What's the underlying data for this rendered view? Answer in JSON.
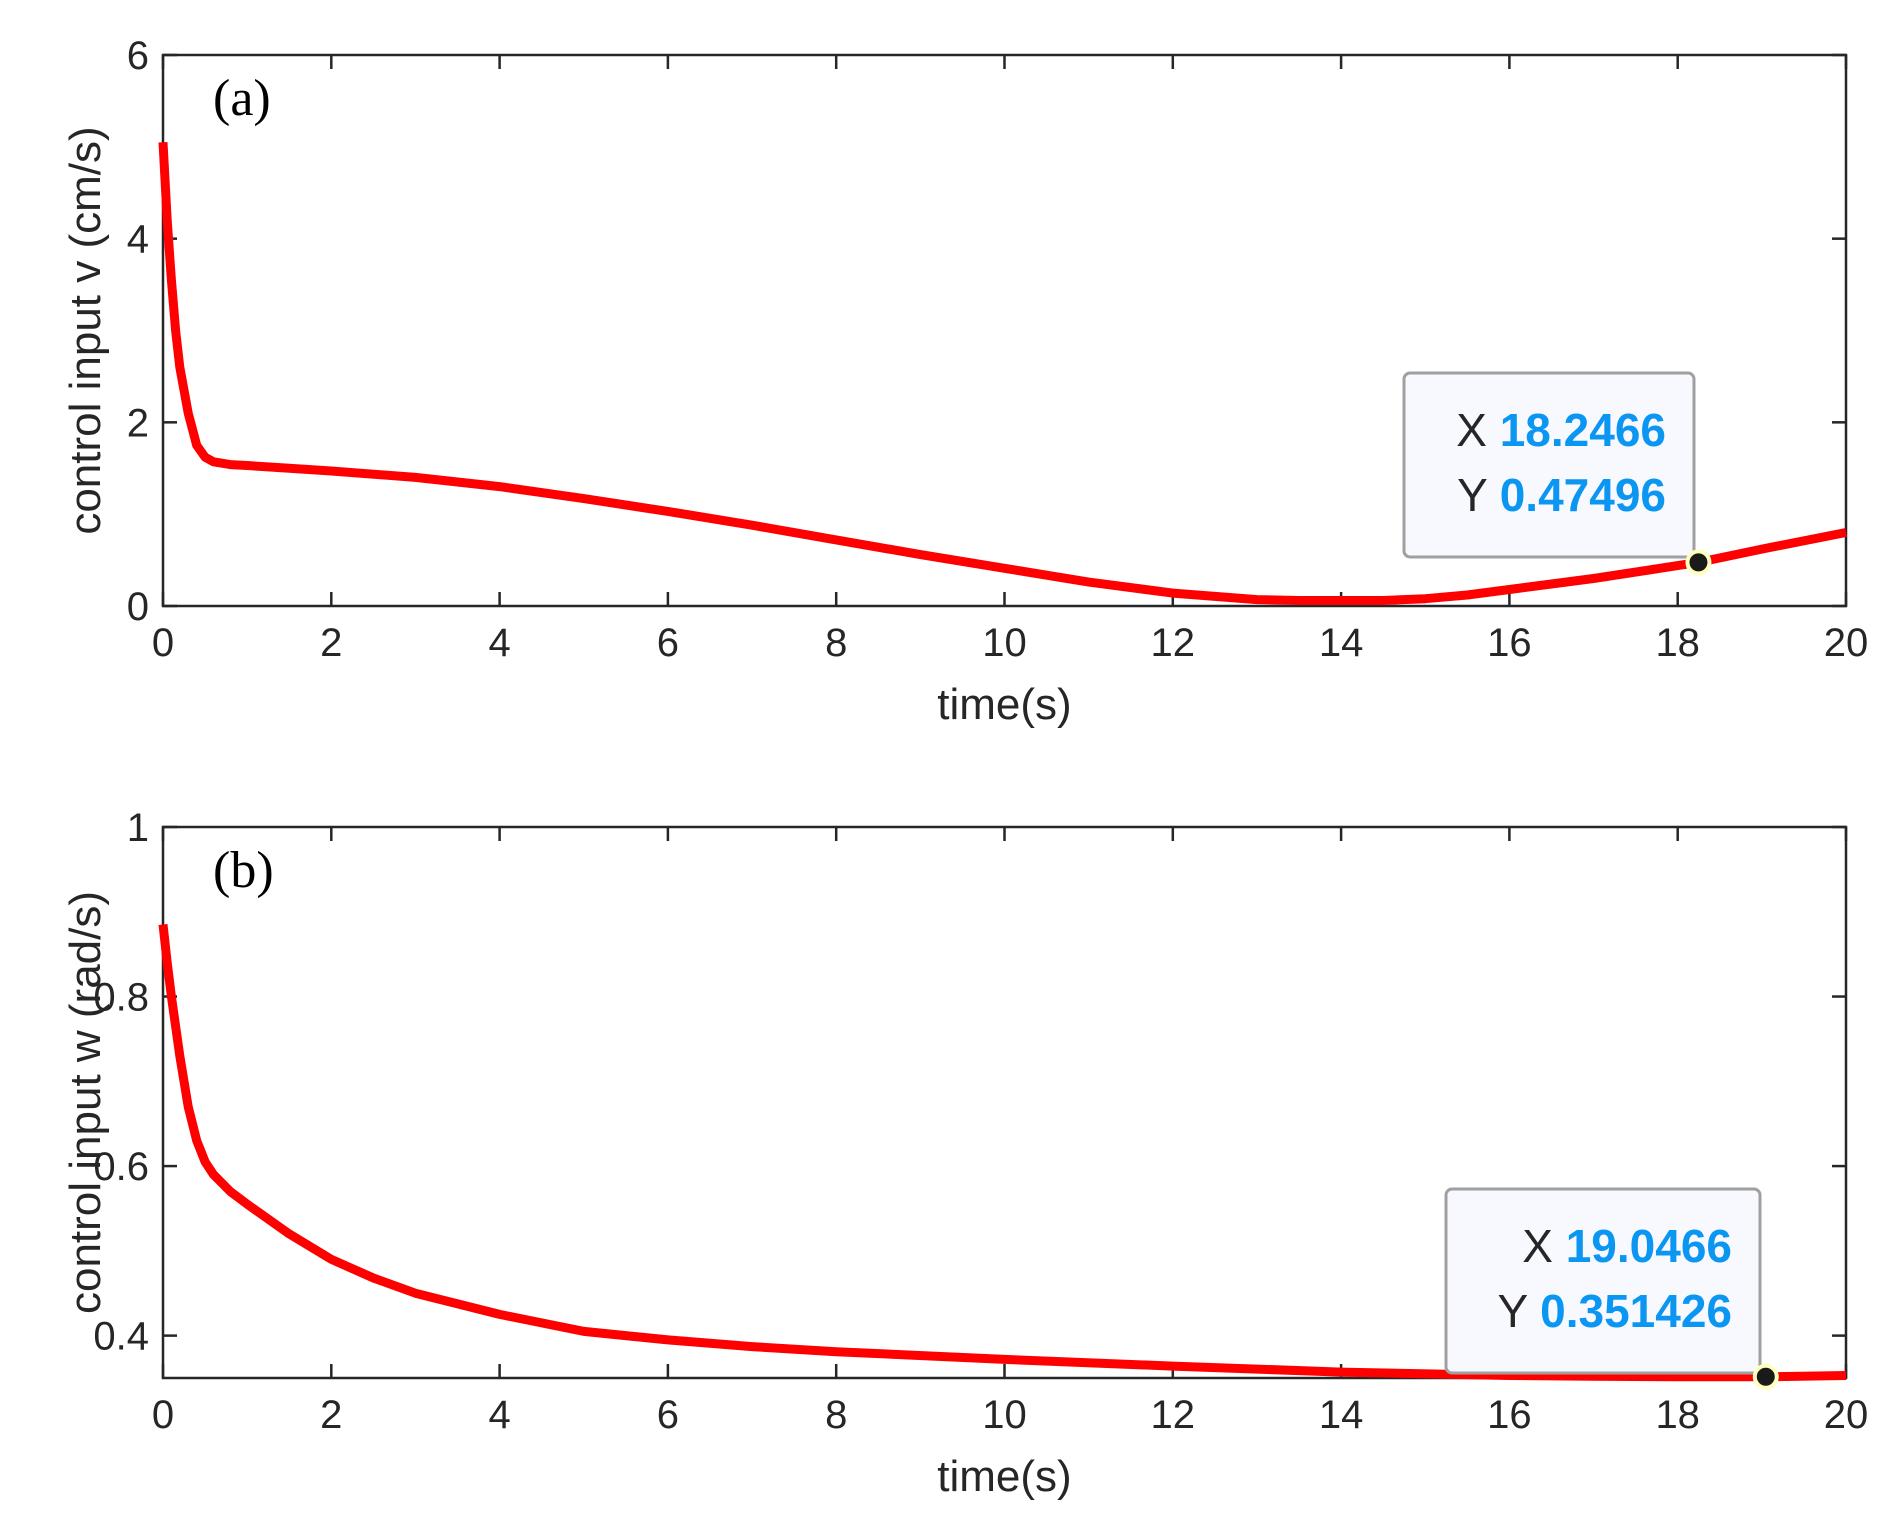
{
  "chart_data": [
    {
      "type": "line",
      "panel_label": "(a)",
      "xlabel": "time(s)",
      "ylabel": "control input v (cm/s)",
      "xlim": [
        0,
        20
      ],
      "ylim": [
        0,
        6
      ],
      "xticks": [
        0,
        2,
        4,
        6,
        8,
        10,
        12,
        14,
        16,
        18,
        20
      ],
      "yticks": [
        0,
        2,
        4,
        6
      ],
      "grid": false,
      "series": [
        {
          "name": "v",
          "color": "#ff0000",
          "x": [
            0,
            0.05,
            0.1,
            0.15,
            0.2,
            0.3,
            0.4,
            0.5,
            0.6,
            0.8,
            1,
            1.5,
            2,
            3,
            4,
            5,
            6,
            7,
            8,
            9,
            10,
            11,
            12,
            13,
            13.5,
            14,
            14.5,
            15,
            15.5,
            16,
            17,
            18,
            18.2466,
            19,
            20
          ],
          "y": [
            5.05,
            4.2,
            3.55,
            3.0,
            2.6,
            2.1,
            1.75,
            1.62,
            1.57,
            1.54,
            1.53,
            1.5,
            1.47,
            1.4,
            1.3,
            1.17,
            1.03,
            0.88,
            0.72,
            0.56,
            0.41,
            0.26,
            0.14,
            0.07,
            0.06,
            0.06,
            0.06,
            0.08,
            0.12,
            0.18,
            0.3,
            0.44,
            0.47496,
            0.62,
            0.8
          ]
        }
      ],
      "datatip": {
        "x_key": "X",
        "y_key": "Y",
        "x_value": "18.2466",
        "y_value": "0.47496",
        "x": 18.2466,
        "y": 0.47496
      }
    },
    {
      "type": "line",
      "panel_label": "(b)",
      "xlabel": "time(s)",
      "ylabel": "control input w (rad/s)",
      "xlim": [
        0,
        20
      ],
      "ylim": [
        0.35,
        1
      ],
      "xticks": [
        0,
        2,
        4,
        6,
        8,
        10,
        12,
        14,
        16,
        18,
        20
      ],
      "yticks": [
        0.4,
        0.6,
        0.8,
        1
      ],
      "ytick_labels": [
        "0.4",
        "0.6",
        "0.8",
        "1"
      ],
      "grid": false,
      "series": [
        {
          "name": "w",
          "color": "#ff0000",
          "x": [
            0,
            0.05,
            0.1,
            0.15,
            0.2,
            0.25,
            0.3,
            0.4,
            0.5,
            0.6,
            0.8,
            1,
            1.5,
            2,
            2.5,
            3,
            4,
            5,
            6,
            7,
            8,
            10,
            12,
            14,
            16,
            17,
            18,
            19.0466,
            20
          ],
          "y": [
            0.885,
            0.84,
            0.8,
            0.765,
            0.73,
            0.7,
            0.67,
            0.63,
            0.605,
            0.59,
            0.57,
            0.555,
            0.52,
            0.49,
            0.468,
            0.45,
            0.425,
            0.405,
            0.395,
            0.387,
            0.381,
            0.372,
            0.364,
            0.357,
            0.353,
            0.352,
            0.3515,
            0.351426,
            0.353
          ]
        }
      ],
      "datatip": {
        "x_key": "X",
        "y_key": "Y",
        "x_value": "19.0466",
        "y_value": "0.351426",
        "x": 19.0466,
        "y": 0.351426
      }
    }
  ],
  "colors": {
    "line": "#ff0000",
    "axis": "#262626",
    "tip_value": "#0b96f2",
    "tip_background": "#f8f8ff",
    "tip_border": "#a0a0a0",
    "marker_fill": "#1a1a1a",
    "marker_edge": "#ffffc0"
  }
}
